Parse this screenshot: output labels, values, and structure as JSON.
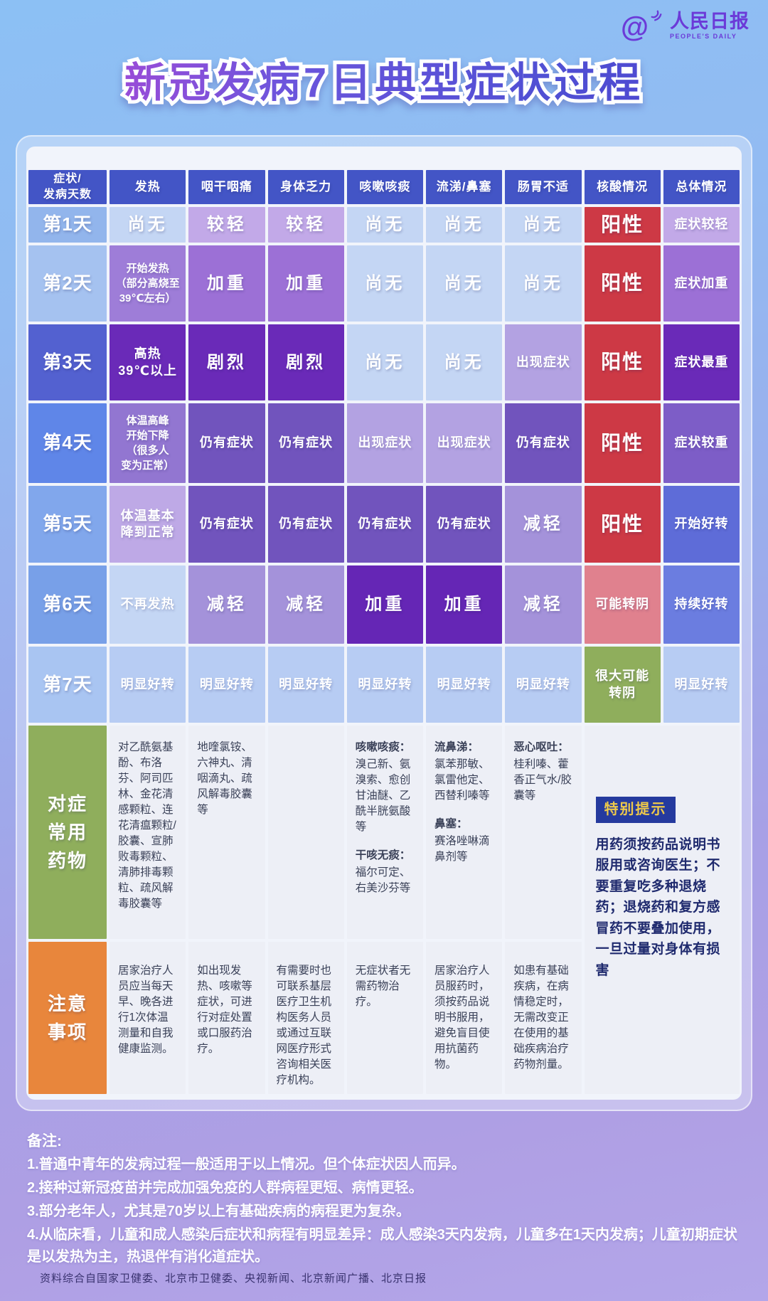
{
  "logo": {
    "at_symbol": "@",
    "name": "人民日报",
    "subtitle": "PEOPLE'S DAILY"
  },
  "title": "新冠发病7日典型症状过程",
  "palette": {
    "header": "#4355c6",
    "day1": "#92b5ec",
    "day2": "#a5c2f0",
    "day3": "#5361d0",
    "day4": "#5f86e8",
    "day5": "#81a7ec",
    "day6": "#78a0e8",
    "day7": "#a9c5f2",
    "none": "#c4d6f4",
    "none7": "#b7ccf3",
    "mild": "#c2a9e8",
    "fever_start": "#9e7dd8",
    "moderate": "#9c70d6",
    "severe": "#6a2ab8",
    "severe_worse": "#6526b5",
    "onset_light": "#b3a2e2",
    "temp_peak": "#9276d1",
    "persist": "#7154bd",
    "heavier": "#7d5dc7",
    "temp_normal": "#bea9e6",
    "reduce": "#a492da",
    "better_start": "#5e6cd8",
    "better_cont": "#6b7de0",
    "positive": "#cd3945",
    "maybe_negative": "#e0818e",
    "likely_negative": "#8fae5c",
    "label_green": "#8fae5c",
    "label_orange": "#e8863c",
    "info_bg": "#edeff6",
    "tip_badge_bg": "#253a9e",
    "tip_badge_text": "#eec94a",
    "tip_text_color": "#1f2a6e"
  },
  "table": {
    "corner": "症状/\n发病天数",
    "headers": [
      "发热",
      "咽干咽痛",
      "身体乏力",
      "咳嗽咳痰",
      "流涕/鼻塞",
      "肠胃不适",
      "核酸情况",
      "总体情况"
    ],
    "day_rows": [
      {
        "day": "第1天",
        "tone": "day1",
        "cells": [
          {
            "text": "尚无",
            "tone": "none",
            "size": "lg"
          },
          {
            "text": "较轻",
            "tone": "mild",
            "size": "lg"
          },
          {
            "text": "较轻",
            "tone": "mild",
            "size": "lg"
          },
          {
            "text": "尚无",
            "tone": "none",
            "size": "lg"
          },
          {
            "text": "尚无",
            "tone": "none",
            "size": "lg"
          },
          {
            "text": "尚无",
            "tone": "none",
            "size": "lg"
          },
          {
            "text": "阳性",
            "tone": "positive",
            "size": "xl"
          },
          {
            "text": "症状较轻",
            "tone": "mild",
            "size": "md"
          }
        ]
      },
      {
        "day": "第2天",
        "tone": "day2",
        "cells": [
          {
            "text": "开始发热\n（部分高烧至\n39℃左右）",
            "tone": "fever_start",
            "size": "sm"
          },
          {
            "text": "加重",
            "tone": "moderate",
            "size": "lg"
          },
          {
            "text": "加重",
            "tone": "moderate",
            "size": "lg"
          },
          {
            "text": "尚无",
            "tone": "none",
            "size": "lg"
          },
          {
            "text": "尚无",
            "tone": "none",
            "size": "lg"
          },
          {
            "text": "尚无",
            "tone": "none",
            "size": "lg"
          },
          {
            "text": "阳性",
            "tone": "positive",
            "size": "xl"
          },
          {
            "text": "症状加重",
            "tone": "moderate",
            "size": "md"
          }
        ]
      },
      {
        "day": "第3天",
        "tone": "day3",
        "cells": [
          {
            "text": "高热\n39℃以上",
            "tone": "severe",
            "size": "md"
          },
          {
            "text": "剧烈",
            "tone": "severe",
            "size": "lg"
          },
          {
            "text": "剧烈",
            "tone": "severe",
            "size": "lg"
          },
          {
            "text": "尚无",
            "tone": "none",
            "size": "lg"
          },
          {
            "text": "尚无",
            "tone": "none",
            "size": "lg"
          },
          {
            "text": "出现症状",
            "tone": "onset_light",
            "size": "md"
          },
          {
            "text": "阳性",
            "tone": "positive",
            "size": "xl"
          },
          {
            "text": "症状最重",
            "tone": "severe",
            "size": "md"
          }
        ]
      },
      {
        "day": "第4天",
        "tone": "day4",
        "cells": [
          {
            "text": "体温高峰\n开始下降\n（很多人\n变为正常）",
            "tone": "temp_peak",
            "size": "sm"
          },
          {
            "text": "仍有症状",
            "tone": "persist",
            "size": "md"
          },
          {
            "text": "仍有症状",
            "tone": "persist",
            "size": "md"
          },
          {
            "text": "出现症状",
            "tone": "onset_light",
            "size": "md"
          },
          {
            "text": "出现症状",
            "tone": "onset_light",
            "size": "md"
          },
          {
            "text": "仍有症状",
            "tone": "persist",
            "size": "md"
          },
          {
            "text": "阳性",
            "tone": "positive",
            "size": "xl"
          },
          {
            "text": "症状较重",
            "tone": "heavier",
            "size": "md"
          }
        ]
      },
      {
        "day": "第5天",
        "tone": "day5",
        "cells": [
          {
            "text": "体温基本\n降到正常",
            "tone": "temp_normal",
            "size": "md"
          },
          {
            "text": "仍有症状",
            "tone": "persist",
            "size": "md"
          },
          {
            "text": "仍有症状",
            "tone": "persist",
            "size": "md"
          },
          {
            "text": "仍有症状",
            "tone": "persist",
            "size": "md"
          },
          {
            "text": "仍有症状",
            "tone": "persist",
            "size": "md"
          },
          {
            "text": "减轻",
            "tone": "reduce",
            "size": "lg"
          },
          {
            "text": "阳性",
            "tone": "positive",
            "size": "xl"
          },
          {
            "text": "开始好转",
            "tone": "better_start",
            "size": "md"
          }
        ]
      },
      {
        "day": "第6天",
        "tone": "day6",
        "cells": [
          {
            "text": "不再发热",
            "tone": "none",
            "size": "md"
          },
          {
            "text": "减轻",
            "tone": "reduce",
            "size": "lg"
          },
          {
            "text": "减轻",
            "tone": "reduce",
            "size": "lg"
          },
          {
            "text": "加重",
            "tone": "severe_worse",
            "size": "lg"
          },
          {
            "text": "加重",
            "tone": "severe_worse",
            "size": "lg"
          },
          {
            "text": "减轻",
            "tone": "reduce",
            "size": "lg"
          },
          {
            "text": "可能转阴",
            "tone": "maybe_negative",
            "size": "md"
          },
          {
            "text": "持续好转",
            "tone": "better_cont",
            "size": "md"
          }
        ]
      },
      {
        "day": "第7天",
        "tone": "day7",
        "cells": [
          {
            "text": "明显好转",
            "tone": "none7",
            "size": "md"
          },
          {
            "text": "明显好转",
            "tone": "none7",
            "size": "md"
          },
          {
            "text": "明显好转",
            "tone": "none7",
            "size": "md"
          },
          {
            "text": "明显好转",
            "tone": "none7",
            "size": "md"
          },
          {
            "text": "明显好转",
            "tone": "none7",
            "size": "md"
          },
          {
            "text": "明显好转",
            "tone": "none7",
            "size": "md"
          },
          {
            "text": "很大可能\n转阴",
            "tone": "likely_negative",
            "size": "md"
          },
          {
            "text": "明显好转",
            "tone": "none7",
            "size": "md"
          }
        ]
      }
    ],
    "med_row": {
      "label": "对症\n常用\n药物",
      "cells": [
        {
          "segments": [
            {
              "body": "对乙酰氨基酚、布洛芬、阿司匹林、金花清感颗粒、连花清瘟颗粒/胶囊、宣肺败毒颗粒、清肺排毒颗粒、疏风解毒胶囊等"
            }
          ]
        },
        {
          "segments": [
            {
              "body": "地喹氯铵、六神丸、清咽滴丸、疏风解毒胶囊等"
            }
          ]
        },
        {
          "segments": []
        },
        {
          "segments": [
            {
              "head": "咳嗽咳痰：",
              "body": "溴己新、氨溴索、愈创甘油醚、乙酰半胱氨酸等"
            },
            {
              "head": "干咳无痰：",
              "body": "福尔可定、右美沙芬等"
            }
          ]
        },
        {
          "segments": [
            {
              "head": "流鼻涕：",
              "body": "氯苯那敏、氯雷他定、西替利嗪等"
            },
            {
              "head": "鼻塞：",
              "body": "赛洛唑啉滴鼻剂等"
            }
          ]
        },
        {
          "segments": [
            {
              "head": "恶心呕吐：",
              "body": "桂利嗪、藿香正气水/胶囊等"
            }
          ]
        }
      ]
    },
    "notes_row": {
      "label": "注意\n事项",
      "cells": [
        "居家治疗人员应当每天早、晚各进行1次体温测量和自我健康监测。",
        "如出现发热、咳嗽等症状，可进行对症处置或口服药治疗。",
        "有需要时也可联系基层医疗卫生机构医务人员或通过互联网医疗形式咨询相关医疗机构。",
        "无症状者无需药物治疗。",
        "居家治疗人员服药时，须按药品说明书服用，避免盲目使用抗菌药物。",
        "如患有基础疾病，在病情稳定时，无需改变正在使用的基础疾病治疗药物剂量。"
      ]
    },
    "special_tip": {
      "badge": "特别提示",
      "text": "用药须按药品说明书服用或咨询医生；不要重复吃多种退烧药；退烧药和复方感冒药不要叠加使用，一旦过量对身体有损害"
    }
  },
  "remarks": {
    "title": "备注:",
    "items": [
      "1.普通中青年的发病过程一般适用于以上情况。但个体症状因人而异。",
      "2.接种过新冠疫苗并完成加强免疫的人群病程更短、病情更轻。",
      "3.部分老年人，尤其是70岁以上有基础疾病的病程更为复杂。",
      "4.从临床看，儿童和成人感染后症状和病程有明显差异：成人感染3天内发病，儿童多在1天内发病；儿童初期症状是以发热为主，热退伴有消化道症状。"
    ]
  },
  "source": "资料综合自国家卫健委、北京市卫健委、央视新闻、北京新闻广播、北京日报"
}
